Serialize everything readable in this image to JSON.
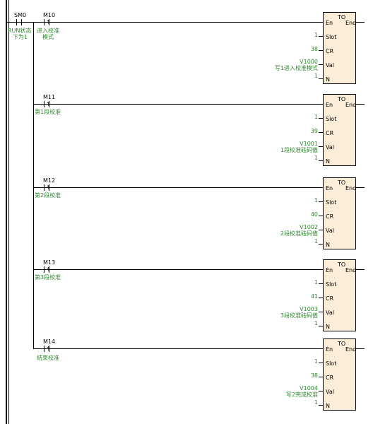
{
  "rungs": [
    {
      "contacts": [
        {
          "name": "SM0",
          "comment_lines": [
            "RUN状态",
            "下为1"
          ],
          "rising": false
        },
        {
          "name": "M10",
          "comment_lines": [
            "进入校准",
            "模式"
          ],
          "rising": true
        }
      ],
      "instr": {
        "title": "TO",
        "en": "En",
        "eno": "Eno"
      },
      "params": [
        {
          "value": "1",
          "pin": "Slot",
          "comment": ""
        },
        {
          "value": "38",
          "pin": "CR",
          "comment": ""
        },
        {
          "value": "V1000",
          "pin": "Val",
          "comment": "写1进入校准模式"
        },
        {
          "value": "1",
          "pin": "N",
          "comment": ""
        }
      ]
    },
    {
      "contacts": [
        {
          "name": "M11",
          "comment_lines": [
            "第1段校准"
          ],
          "rising": true
        }
      ],
      "instr": {
        "title": "TO",
        "en": "En",
        "eno": "Eno"
      },
      "params": [
        {
          "value": "1",
          "pin": "Slot",
          "comment": ""
        },
        {
          "value": "39",
          "pin": "CR",
          "comment": ""
        },
        {
          "value": "V1001",
          "pin": "Val",
          "comment": "1段校准砝码值"
        },
        {
          "value": "1",
          "pin": "N",
          "comment": ""
        }
      ]
    },
    {
      "contacts": [
        {
          "name": "M12",
          "comment_lines": [
            "第2段校准"
          ],
          "rising": true
        }
      ],
      "instr": {
        "title": "TO",
        "en": "En",
        "eno": "Eno"
      },
      "params": [
        {
          "value": "1",
          "pin": "Slot",
          "comment": ""
        },
        {
          "value": "40",
          "pin": "CR",
          "comment": ""
        },
        {
          "value": "V1002",
          "pin": "Val",
          "comment": "2段校准砝码值"
        },
        {
          "value": "1",
          "pin": "N",
          "comment": ""
        }
      ]
    },
    {
      "contacts": [
        {
          "name": "M13",
          "comment_lines": [
            "第3段校准"
          ],
          "rising": true
        }
      ],
      "instr": {
        "title": "TO",
        "en": "En",
        "eno": "Eno"
      },
      "params": [
        {
          "value": "1",
          "pin": "Slot",
          "comment": ""
        },
        {
          "value": "41",
          "pin": "CR",
          "comment": ""
        },
        {
          "value": "V1003",
          "pin": "Val",
          "comment": "3段校准砝码值"
        },
        {
          "value": "1",
          "pin": "N",
          "comment": ""
        }
      ]
    },
    {
      "contacts": [
        {
          "name": "M14",
          "comment_lines": [
            "结束校准"
          ],
          "rising": true
        }
      ],
      "instr": {
        "title": "TO",
        "en": "En",
        "eno": "Eno"
      },
      "params": [
        {
          "value": "1",
          "pin": "Slot",
          "comment": ""
        },
        {
          "value": "38",
          "pin": "CR",
          "comment": ""
        },
        {
          "value": "V1004",
          "pin": "Val",
          "comment": "写2完成校准"
        },
        {
          "value": "1",
          "pin": "N",
          "comment": ""
        }
      ]
    }
  ],
  "colors": {
    "wire": "#000000",
    "comment": "#2a8a2a",
    "box_fill": "#fbedd8"
  },
  "icons": {
    "contact": "normally-open-contact-icon",
    "rising_contact": "rising-edge-contact-icon"
  }
}
